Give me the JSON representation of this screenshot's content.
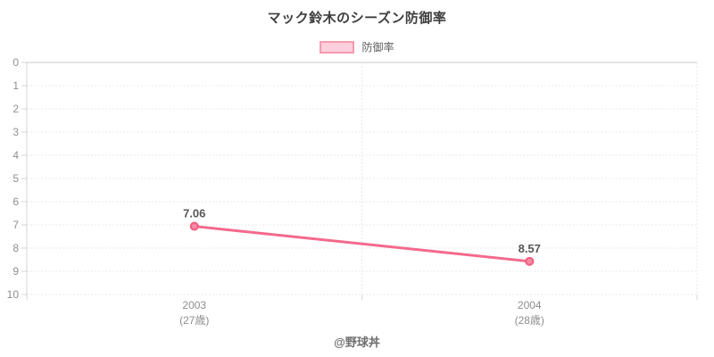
{
  "title": "マック鈴木のシーズン防御率",
  "legend": {
    "label": "防御率"
  },
  "footer": "@野球丼",
  "colors": {
    "line": "#f4698c",
    "point_fill": "#f78ca4",
    "point_stroke": "#f25c82",
    "legend_fill": "#fbd0dc",
    "legend_border": "#f79ab2",
    "title_text": "#3e3e3e",
    "legend_text": "#5f5f5f",
    "value_label_text": "#565656",
    "tick_text": "#8e8e8e",
    "grid": "#e8e8e8",
    "zero_line": "#c9c9c9",
    "axis": "#d6d6d6",
    "footer_text": "#6f6f6f"
  },
  "chart_data": {
    "type": "line",
    "title": "マック鈴木のシーズン防御率",
    "categories": [
      "2003",
      "2004"
    ],
    "category_sublabels": [
      "(27歳)",
      "(28歳)"
    ],
    "series": [
      {
        "name": "防御率",
        "values": [
          7.06,
          8.57
        ]
      }
    ],
    "value_labels": [
      "7.06",
      "8.57"
    ],
    "xlabel": "",
    "ylabel": "",
    "ylim": [
      0,
      10
    ],
    "y_ticks": [
      0,
      1,
      2,
      3,
      4,
      5,
      6,
      7,
      8,
      9,
      10
    ],
    "y_inverted": true,
    "grid": true,
    "legend_position": "top"
  }
}
